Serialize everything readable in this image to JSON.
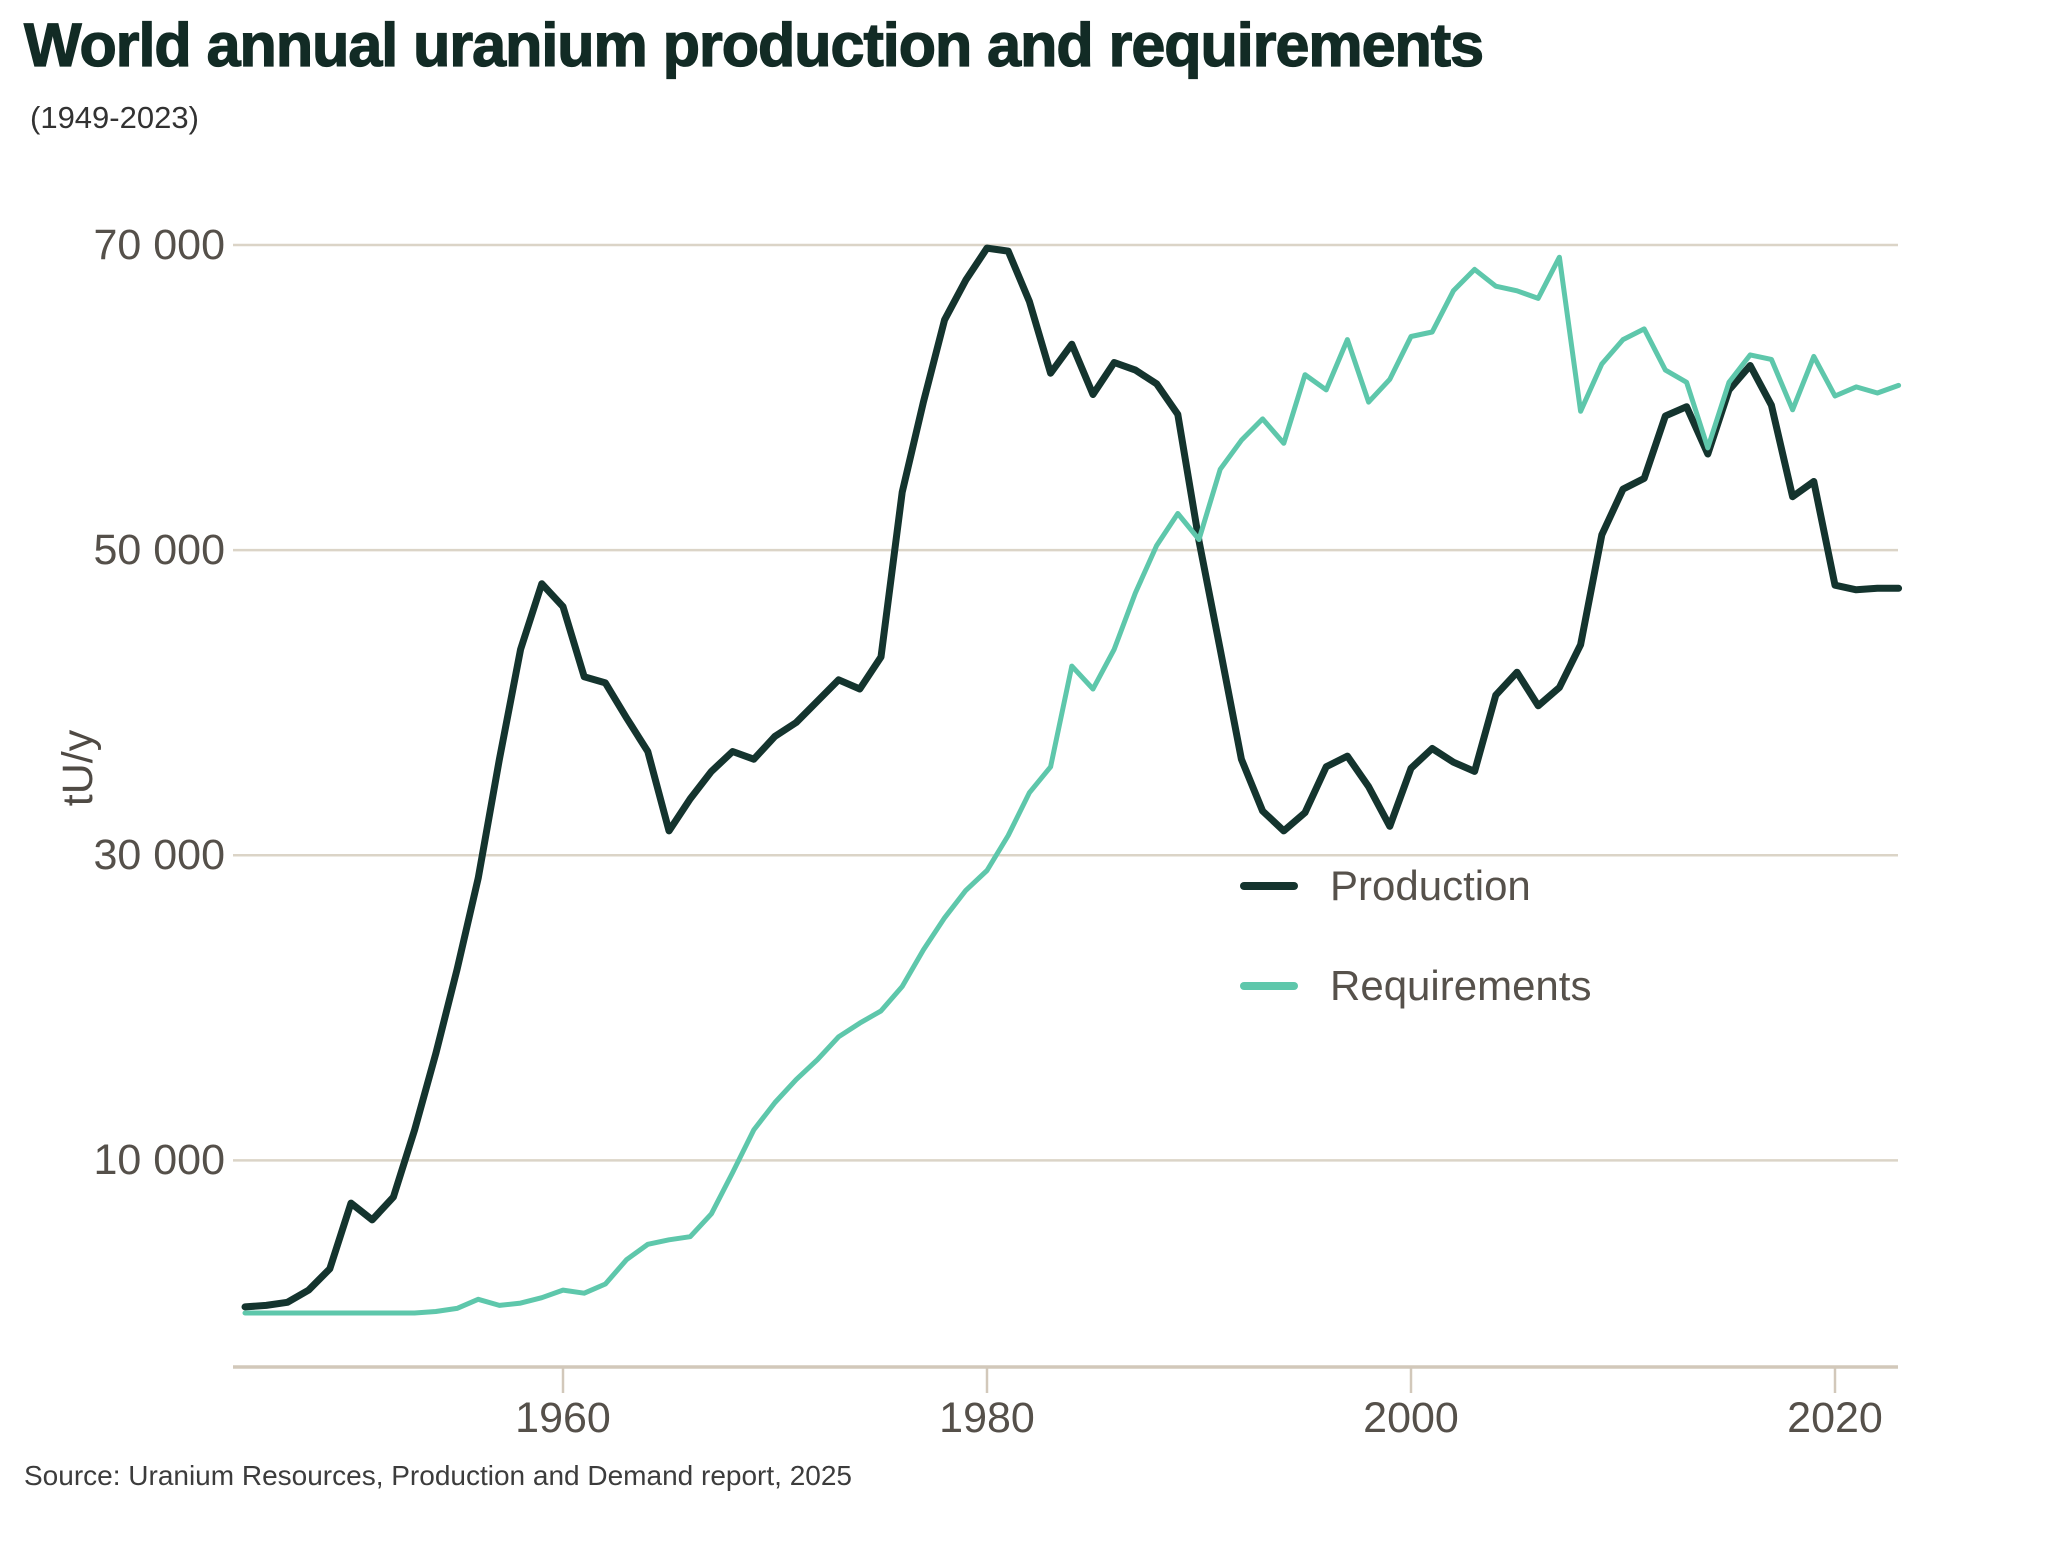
{
  "page": {
    "title": "World annual uranium production and requirements",
    "subtitle": "(1949-2023)",
    "source": "Source: Uranium Resources, Production and Demand report, 2025"
  },
  "colors": {
    "title_text": "#122b25",
    "production_line": "#14342e",
    "requirements_line": "#5ec7ab",
    "gridline": "#dbd4c7",
    "axis_line": "#d2c8ba",
    "tick_text": "#55504a"
  },
  "chart_data": {
    "type": "line",
    "title": "World annual uranium production and requirements",
    "subtitle": "(1949-2023)",
    "xlabel": "",
    "ylabel": "tU/y",
    "x_domain": [
      1945,
      2023
    ],
    "ylim": [
      0,
      70000
    ],
    "x_ticks": [
      1960,
      1980,
      2000,
      2020
    ],
    "y_ticks": [
      10000,
      30000,
      50000,
      70000
    ],
    "y_tick_labels": [
      "10 000",
      "30 000",
      "50 000",
      "70 000"
    ],
    "grid": "horizontal-only",
    "legend_position": "center-right",
    "years": [
      1945,
      1946,
      1947,
      1948,
      1949,
      1950,
      1951,
      1952,
      1953,
      1954,
      1955,
      1956,
      1957,
      1958,
      1959,
      1960,
      1961,
      1962,
      1963,
      1964,
      1965,
      1966,
      1967,
      1968,
      1969,
      1970,
      1971,
      1972,
      1973,
      1974,
      1975,
      1976,
      1977,
      1978,
      1979,
      1980,
      1981,
      1982,
      1983,
      1984,
      1985,
      1986,
      1987,
      1988,
      1989,
      1990,
      1991,
      1992,
      1993,
      1994,
      1995,
      1996,
      1997,
      1998,
      1999,
      2000,
      2001,
      2002,
      2003,
      2004,
      2005,
      2006,
      2007,
      2008,
      2009,
      2010,
      2011,
      2012,
      2013,
      2014,
      2015,
      2016,
      2017,
      2018,
      2019,
      2020,
      2021,
      2022,
      2023
    ],
    "series": [
      {
        "name": "Production",
        "color": "#14342e",
        "values": [
          400,
          500,
          700,
          1500,
          2900,
          7200,
          6100,
          7600,
          12000,
          17000,
          22500,
          28500,
          36300,
          43500,
          47800,
          46300,
          41700,
          41300,
          39000,
          36800,
          31600,
          33700,
          35500,
          36800,
          36300,
          37800,
          38700,
          40100,
          41500,
          40900,
          43000,
          53800,
          59700,
          65100,
          67700,
          69800,
          69600,
          66300,
          61600,
          63500,
          60200,
          62300,
          61800,
          60900,
          58900,
          50600,
          43500,
          36300,
          32900,
          31600,
          32800,
          35800,
          36500,
          34500,
          31900,
          35700,
          37000,
          36100,
          35500,
          40500,
          42000,
          39800,
          41000,
          43800,
          51000,
          54000,
          54700,
          58800,
          59400,
          56300,
          60500,
          62100,
          59500,
          53500,
          54500,
          47700,
          47400,
          47500,
          47500
        ]
      },
      {
        "name": "Requirements",
        "color": "#5ec7ab",
        "values": [
          0,
          0,
          0,
          0,
          0,
          0,
          0,
          0,
          0,
          100,
          300,
          900,
          500,
          650,
          1000,
          1500,
          1300,
          1900,
          3500,
          4500,
          4800,
          5000,
          6500,
          9200,
          12000,
          13800,
          15300,
          16600,
          18100,
          19000,
          19800,
          21400,
          23800,
          25900,
          27700,
          29000,
          31300,
          34100,
          35800,
          42400,
          40900,
          43500,
          47200,
          50300,
          52400,
          50700,
          55300,
          57200,
          58600,
          57000,
          61500,
          60500,
          63800,
          59700,
          61200,
          64000,
          64300,
          67000,
          68400,
          67300,
          67000,
          66500,
          69200,
          59100,
          62200,
          63800,
          64500,
          61800,
          61000,
          56700,
          61000,
          62800,
          62500,
          59200,
          62700,
          60100,
          60700,
          60300,
          60800
        ]
      }
    ]
  }
}
